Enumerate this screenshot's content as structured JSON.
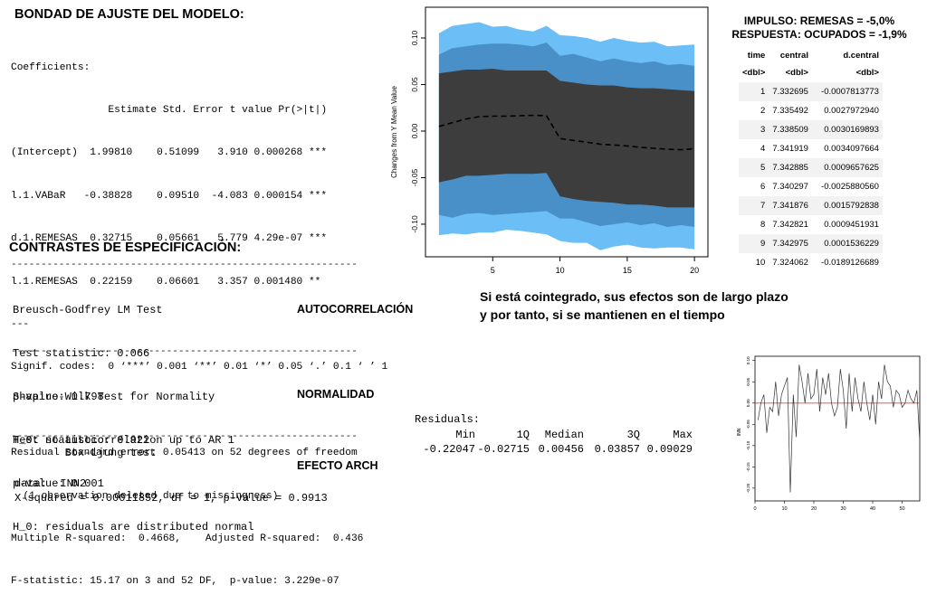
{
  "model_fit": {
    "title": "BONDAD DE AJUSTE DEL MODELO:",
    "coefficients_label": "Coefficients:",
    "header": "                Estimate Std. Error t value Pr(>|t|)",
    "rows": [
      "(Intercept)  1.99810    0.51099   3.910 0.000268 ***",
      "l.1.VABaR   -0.38828    0.09510  -4.083 0.000154 ***",
      "d.1.REMESAS  0.32715    0.05661   5.779 4.29e-07 ***",
      "l.1.REMESAS  0.22159    0.06601   3.357 0.001480 **"
    ],
    "separator": "---",
    "signif": "Signif. codes:  0 ‘***’ 0.001 ‘**’ 0.01 ‘*’ 0.05 ‘.’ 0.1 ‘ ’ 1",
    "stats": [
      "Residual standard error: 0.05413 on 52 degrees of freedom",
      "  (1 observation deleted due to missingness)",
      "Multiple R-squared:  0.4668,    Adjusted R-squared:  0.436",
      "F-statistic: 15.17 on 3 and 52 DF,  p-value: 3.229e-07"
    ]
  },
  "spec_tests": {
    "title": "CONTRASTES DE ESPECIFICACIÓN:",
    "dashes": "----------------------------------------------------------",
    "bg": {
      "lines": [
        "Breusch-Godfrey LM Test",
        "Test statistic: 0.066",
        "p-value: 0.798",
        "H_0: no autocorrelation up to AR 1"
      ],
      "label": "AUTOCORRELACIÓN"
    },
    "sw": {
      "lines": [
        "Shapiro-Wilk Test for Normality",
        "Test statistic: 0.922",
        "p-value: 0.001",
        "H_0: residuals are distributed normal"
      ],
      "label": "NORMALIDAD"
    },
    "bl": {
      "title": "        Box-Ljung test",
      "data_line": "data:  INN2",
      "stat_line": "X-squared = 0.00011852, df = 1, p-value = 0.9913",
      "label": "EFECTO ARCH"
    }
  },
  "irf_chart": {
    "ylabel": "Changes from Y Mean Value",
    "x_ticks": [
      "5",
      "10",
      "15",
      "20"
    ],
    "y_ticks": [
      "0.10",
      "0.05",
      "0.00",
      "-0.05",
      "-0.10"
    ],
    "colors": {
      "outer": "#6cbef7",
      "middle": "#4a90c8",
      "inner": "#3d3d3d",
      "line": "#000000"
    }
  },
  "chart_data": {
    "type": "area",
    "x": [
      1,
      2,
      3,
      4,
      5,
      6,
      7,
      8,
      9,
      10,
      11,
      12,
      13,
      14,
      15,
      16,
      17,
      18,
      19,
      20
    ],
    "xlabel": "",
    "ylabel": "Changes from Y Mean Value",
    "xlim": [
      0,
      21
    ],
    "ylim": [
      -0.135,
      0.133
    ],
    "series": [
      {
        "role": "outer_band",
        "upper": [
          0.105,
          0.113,
          0.115,
          0.117,
          0.112,
          0.113,
          0.109,
          0.107,
          0.113,
          0.103,
          0.102,
          0.1,
          0.096,
          0.1,
          0.097,
          0.095,
          0.096,
          0.091,
          0.092,
          0.093
        ],
        "lower": [
          -0.112,
          -0.11,
          -0.111,
          -0.109,
          -0.109,
          -0.106,
          -0.107,
          -0.109,
          -0.111,
          -0.118,
          -0.12,
          -0.12,
          -0.128,
          -0.124,
          -0.122,
          -0.125,
          -0.126,
          -0.125,
          -0.125,
          -0.127
        ]
      },
      {
        "role": "middle_band",
        "upper": [
          0.082,
          0.089,
          0.091,
          0.093,
          0.094,
          0.094,
          0.093,
          0.091,
          0.095,
          0.081,
          0.083,
          0.079,
          0.075,
          0.078,
          0.075,
          0.073,
          0.075,
          0.071,
          0.072,
          0.07
        ],
        "lower": [
          -0.09,
          -0.093,
          -0.089,
          -0.088,
          -0.09,
          -0.089,
          -0.088,
          -0.087,
          -0.086,
          -0.094,
          -0.094,
          -0.098,
          -0.102,
          -0.1,
          -0.098,
          -0.101,
          -0.099,
          -0.103,
          -0.101,
          -0.103
        ]
      },
      {
        "role": "inner_band",
        "upper": [
          0.062,
          0.064,
          0.066,
          0.066,
          0.067,
          0.065,
          0.065,
          0.065,
          0.065,
          0.054,
          0.052,
          0.05,
          0.049,
          0.049,
          0.047,
          0.046,
          0.046,
          0.045,
          0.044,
          0.043
        ],
        "lower": [
          -0.055,
          -0.052,
          -0.048,
          -0.048,
          -0.047,
          -0.046,
          -0.046,
          -0.046,
          -0.045,
          -0.07,
          -0.073,
          -0.075,
          -0.076,
          -0.077,
          -0.079,
          -0.079,
          -0.08,
          -0.082,
          -0.082,
          -0.082
        ]
      },
      {
        "role": "central",
        "values": [
          0.005,
          0.009,
          0.013,
          0.0155,
          0.016,
          0.016,
          0.0165,
          0.017,
          0.0165,
          -0.008,
          -0.01,
          -0.012,
          -0.014,
          -0.015,
          -0.016,
          -0.0175,
          -0.0185,
          -0.0195,
          -0.02,
          -0.019
        ]
      }
    ]
  },
  "irf_table": {
    "title_lines": [
      "IMPULSO: REMESAS = -5,0%",
      "RESPUESTA: OCUPADOS = -1,9%"
    ],
    "columns": [
      "time",
      "central",
      "d.central"
    ],
    "types": [
      "<dbl>",
      "<dbl>",
      "<dbl>"
    ],
    "rows": [
      [
        "1",
        "7.332695",
        "-0.0007813773"
      ],
      [
        "2",
        "7.335492",
        "0.0027972940"
      ],
      [
        "3",
        "7.338509",
        "0.0030169893"
      ],
      [
        "4",
        "7.341919",
        "0.0034097664"
      ],
      [
        "5",
        "7.342885",
        "0.0009657625"
      ],
      [
        "6",
        "7.340297",
        "-0.0025880560"
      ],
      [
        "7",
        "7.341876",
        "0.0015792838"
      ],
      [
        "8",
        "7.342821",
        "0.0009451931"
      ],
      [
        "9",
        "7.342975",
        "0.0001536229"
      ],
      [
        "10",
        "7.324062",
        "-0.0189126689"
      ]
    ]
  },
  "cointegration_note": [
    "Si está cointegrado, sus efectos son de largo plazo",
    "y por tanto, si se mantienen en el tiempo"
  ],
  "residuals": {
    "title": "Residuals:",
    "headers": [
      "Min",
      "1Q",
      "Median",
      "3Q",
      "Max"
    ],
    "values": [
      "-0.22047",
      "-0.02715",
      "0.00456",
      "0.03857",
      "0.09029"
    ]
  },
  "residual_plot": {
    "ylabel": "INN",
    "x_ticks": [
      "0",
      "10",
      "20",
      "30",
      "40",
      "50"
    ],
    "y_ticks": [
      "0.10",
      "0.05",
      "0.00",
      "-0.05",
      "-0.10",
      "-0.15",
      "-0.20"
    ],
    "colors": {
      "line": "#333333",
      "zero": "#e8413c"
    },
    "values": [
      -0.04,
      0.0,
      0.02,
      -0.07,
      -0.01,
      -0.02,
      0.05,
      -0.03,
      0.02,
      0.04,
      0.06,
      -0.21,
      0.02,
      -0.08,
      0.09,
      0.05,
      0.0,
      0.07,
      0.01,
      0.02,
      0.08,
      -0.02,
      0.06,
      0.02,
      0.07,
      0.0,
      -0.03,
      -0.01,
      0.08,
      0.03,
      -0.06,
      0.07,
      -0.02,
      0.06,
      0.01,
      -0.02,
      0.05,
      0.0,
      -0.04,
      0.02,
      -0.05,
      0.05,
      0.01,
      0.09,
      0.05,
      0.04,
      -0.01,
      0.03,
      0.02,
      -0.01,
      0.0,
      0.03,
      0.01,
      0.0,
      0.03,
      -0.09
    ],
    "xlim": [
      0,
      56
    ],
    "ylim": [
      -0.23,
      0.11
    ]
  }
}
